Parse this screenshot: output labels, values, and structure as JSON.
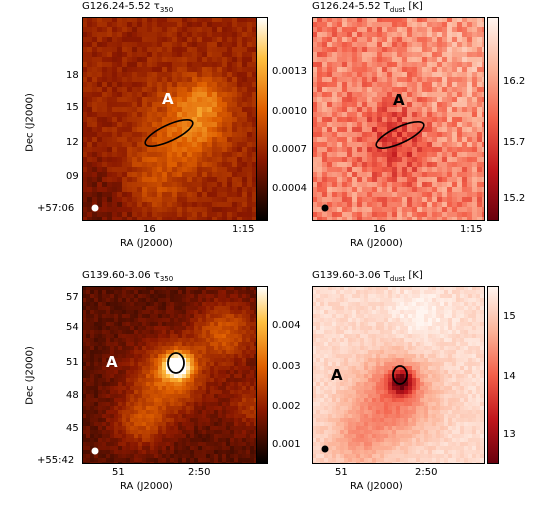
{
  "chart_data": [
    {
      "type": "heatmap",
      "title": "G126.24-5.52 τ",
      "title_sub": "350",
      "xlabel": "RA (J2000)",
      "ylabel": "Dec (J2000)",
      "x_ticks": [
        "16",
        "1:15"
      ],
      "y_ticks": [
        "18",
        "15",
        "12",
        "09",
        "+57:06"
      ],
      "colorbar_ticks": [
        "0.0013",
        "0.0010",
        "0.0007",
        "0.0004"
      ],
      "colorbar_range": [
        0.00022,
        0.00155
      ],
      "colormap": "afmhot",
      "annotation": "A",
      "ellipse_color": "#000000",
      "beam_color": "#ffffff"
    },
    {
      "type": "heatmap",
      "title": "G126.24-5.52 T",
      "title_sub": "dust",
      "title_suffix": " [K]",
      "xlabel": "RA (J2000)",
      "ylabel": "",
      "x_ticks": [
        "16",
        "1:15"
      ],
      "y_ticks": [],
      "colorbar_ticks": [
        "16.2",
        "15.7",
        "15.2"
      ],
      "colorbar_range": [
        15.05,
        16.45
      ],
      "colormap": "reds",
      "annotation": "A",
      "ellipse_color": "#000000",
      "beam_color": "#000000"
    },
    {
      "type": "heatmap",
      "title": "G139.60-3.06 τ",
      "title_sub": "350",
      "xlabel": "RA (J2000)",
      "ylabel": "Dec (J2000)",
      "x_ticks": [
        "51",
        "2:50"
      ],
      "y_ticks": [
        "57",
        "54",
        "51",
        "48",
        "45",
        "+55:42"
      ],
      "colorbar_ticks": [
        "0.004",
        "0.003",
        "0.002",
        "0.001"
      ],
      "colorbar_range": [
        0.0004,
        0.0049
      ],
      "colormap": "afmhot",
      "annotation": "A",
      "ellipse_color": "#000000",
      "beam_color": "#ffffff"
    },
    {
      "type": "heatmap",
      "title": "G139.60-3.06 T",
      "title_sub": "dust",
      "title_suffix": " [K]",
      "xlabel": "RA (J2000)",
      "ylabel": "",
      "x_ticks": [
        "51",
        "2:50"
      ],
      "y_ticks": [],
      "colorbar_ticks": [
        "15",
        "14",
        "13"
      ],
      "colorbar_range": [
        12.5,
        15.4
      ],
      "colormap": "reds",
      "annotation": "A",
      "ellipse_color": "#000000",
      "beam_color": "#000000"
    }
  ]
}
